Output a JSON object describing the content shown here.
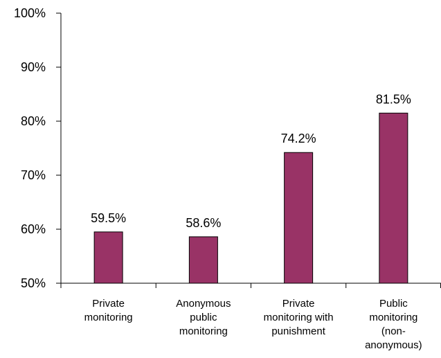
{
  "chart_data": {
    "type": "bar",
    "title": "",
    "xlabel": "",
    "ylabel": "",
    "ylim": [
      50,
      100
    ],
    "y_ticks": [
      50,
      60,
      70,
      80,
      90,
      100
    ],
    "y_tick_labels": [
      "50%",
      "60%",
      "70%",
      "80%",
      "90%",
      "100%"
    ],
    "grid": false,
    "legend": "none",
    "categories": [
      [
        "Private",
        "monitoring"
      ],
      [
        "Anonymous",
        "public",
        "monitoring"
      ],
      [
        "Private",
        "monitoring with",
        "punishment"
      ],
      [
        "Public",
        "monitoring",
        "(non-",
        "anonymous)"
      ]
    ],
    "values": [
      59.5,
      58.6,
      74.2,
      81.5
    ],
    "data_labels": [
      "59.5%",
      "58.6%",
      "74.2%",
      "81.5%"
    ],
    "bar_color": "#993366"
  }
}
